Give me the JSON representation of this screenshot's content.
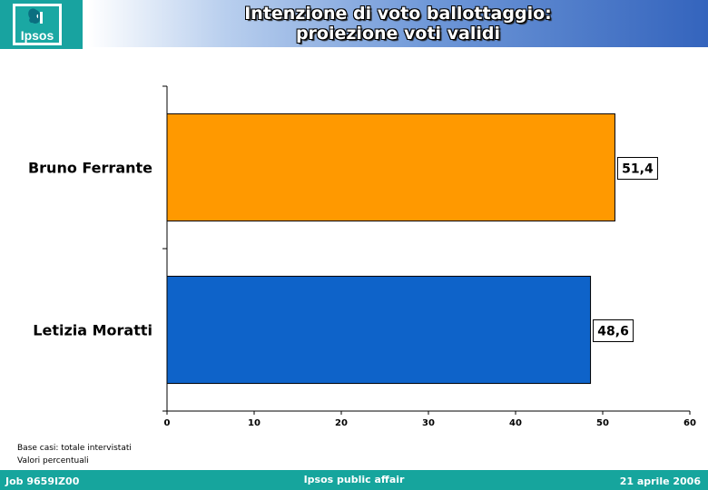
{
  "header": {
    "logo_text": "Ipsos",
    "title_line1": "Intenzione di voto ballottaggio:",
    "title_line2": "proiezione voti validi"
  },
  "chart_data": {
    "type": "bar",
    "orientation": "horizontal",
    "categories": [
      "Bruno Ferrante",
      "Letizia Moratti"
    ],
    "values": [
      51.4,
      48.6
    ],
    "value_labels": [
      "51,4",
      "48,6"
    ],
    "colors": [
      "#ff9900",
      "#0e63c9"
    ],
    "xlim": [
      0,
      60
    ],
    "xticks": [
      0,
      10,
      20,
      30,
      40,
      50,
      60
    ],
    "grid": false,
    "legend": "none"
  },
  "notes": {
    "line1": "Base casi: totale intervistati",
    "line2": "Valori percentuali"
  },
  "footer": {
    "job": "Job 9659IZ00",
    "center": "Ipsos public affair",
    "date": "21 aprile 2006"
  }
}
